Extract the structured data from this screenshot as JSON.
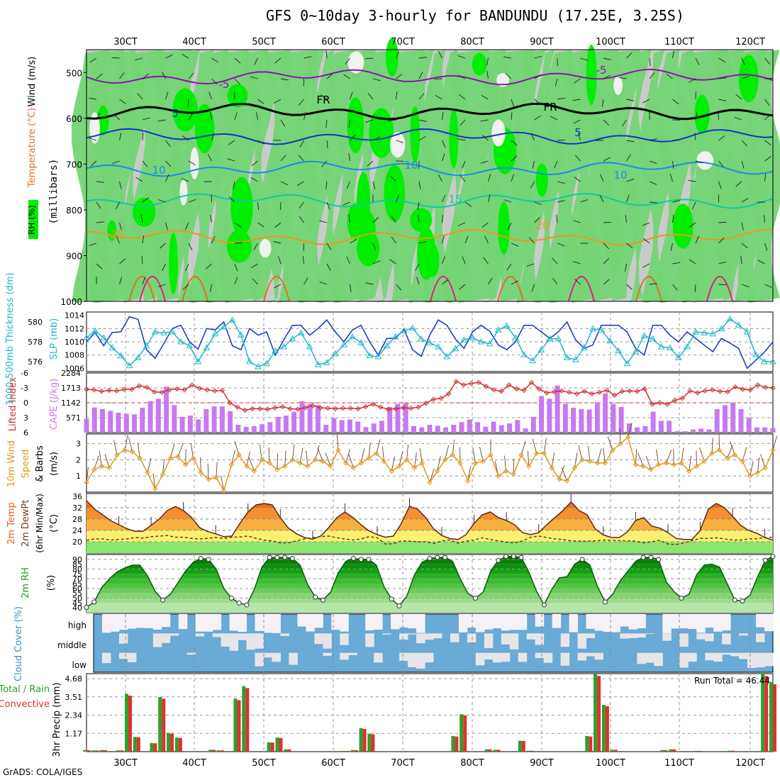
{
  "header": {
    "title": "GFS 0~10day 3-hourly for BANDUNDU (17.25E, 3.25S)",
    "credit": "GrADS: COLA/IGES"
  },
  "dates": [
    "30CT",
    "40CT",
    "50CT",
    "60CT",
    "70CT",
    "80CT",
    "90CT",
    "100CT",
    "110CT",
    "120CT"
  ],
  "colors": {
    "rh_light": "#c8ccc8",
    "rh_mid": "#74d474",
    "rh_high": "#00ee00",
    "slp": "#1434c8",
    "thickness": "#1cb8c8",
    "lifted": "#d03030",
    "cape": "#c878f0",
    "wind10": "#e09a20",
    "temp_hot": "#f06e10",
    "temp_warm": "#f8b040",
    "temp_mild": "#fcf070",
    "cloud": "#6aaad6"
  },
  "chart_data": [
    {
      "type": "area",
      "panel": "pressure-cross-section",
      "ylabel": "(millibars)",
      "side_labels": {
        "wind": "Wind (m/s)",
        "temperature": "Temperature (°C)",
        "rh": "RH (%)"
      },
      "y_ticks": [
        500,
        600,
        700,
        800,
        900,
        1000
      ],
      "ylim": [
        450,
        1000
      ],
      "temperature_contours": [
        {
          "label": "-5",
          "level_mb": 510,
          "color": "#8c14b4"
        },
        {
          "label": "FR",
          "level_mb": 585,
          "color": "#000000"
        },
        {
          "label": "5",
          "level_mb": 640,
          "color": "#1434c8"
        },
        {
          "label": "10",
          "level_mb": 710,
          "color": "#1c8ce8"
        },
        {
          "label": "15",
          "level_mb": 780,
          "color": "#14c8a0"
        },
        {
          "label": "20",
          "level_mb": 860,
          "color": "#e89820"
        }
      ],
      "contour_texts": [
        "-5",
        "-5",
        "FR",
        "FR",
        "5",
        "5",
        "10",
        "10",
        "10",
        "15",
        "20",
        "20"
      ]
    },
    {
      "type": "line",
      "panel": "slp-thickness",
      "ylabel_left": "1000-500mb Thickness (dm)",
      "ylabel_right": "SLP (mb)",
      "left_ticks": [
        576,
        578,
        580
      ],
      "right_ticks": [
        1006,
        1008,
        1010,
        1012,
        1014
      ],
      "series": [
        {
          "name": "SLP (mb)",
          "values": [
            1010.0,
            1011.4,
            1009.4,
            1011.4,
            1011.5,
            1013.8,
            1013.4,
            1008.8,
            1007.5,
            1009.7,
            1012.0,
            1012.5,
            1010.0,
            1008.9,
            1012.0,
            1011.8,
            1013.0,
            1009.4,
            1008.8,
            1012.0,
            1011.0,
            1011.5,
            1008.0,
            1010.3,
            1012.5,
            1012.5,
            1011.0,
            1012.0,
            1013.3,
            1011.5,
            1010.0,
            1011.8,
            1012.5,
            1010.0,
            1008.0,
            1010.5,
            1010.5,
            1011.9,
            1008.8,
            1007.8,
            1011.0,
            1013.3,
            1012.5,
            1010.4,
            1009.0,
            1011.5,
            1012.5,
            1011.6,
            1009.5,
            1008.8,
            1010.0,
            1012.5,
            1012.5,
            1011.5,
            1010.5,
            1011.5,
            1013.0,
            1010.3,
            1009.0,
            1009.5,
            1012.5,
            1012.5,
            1012.5,
            1011.5,
            1009.0,
            1008.0,
            1012.5,
            1012.5,
            1011.0,
            1010.0,
            1011.5,
            1010.5,
            1009.5,
            1008.5,
            1010.5,
            1009.8,
            1009.0,
            1006.0,
            1007.2,
            1008.4,
            1010.0
          ]
        },
        {
          "name": "1000-500mb Thickness (dm)",
          "values": [
            578.4,
            579.1,
            578.4,
            577.4,
            576.6,
            575.6,
            576.4,
            577.6,
            579.0,
            578.9,
            579.0,
            578.0,
            577.6,
            576.0,
            577.4,
            578.8,
            579.5,
            580.2,
            578.7,
            576.0,
            575.5,
            575.8,
            577.1,
            577.5,
            578.3,
            578.9,
            577.5,
            575.7,
            575.9,
            576.8,
            577.7,
            578.5,
            577.9,
            576.6,
            576.5,
            577.6,
            578.5,
            579.1,
            579.4,
            578.3,
            577.9,
            577.5,
            576.5,
            577.3,
            578.2,
            578.4,
            578.0,
            577.8,
            579.2,
            579.6,
            578.4,
            576.7,
            576.1,
            577.2,
            578.3,
            578.3,
            576.4,
            576.2,
            577.4,
            579.3,
            579.2,
            578.1,
            577.1,
            575.8,
            577.0,
            578.6,
            578.3,
            577.5,
            577.4,
            576.4,
            577.5,
            579.0,
            578.9,
            578.8,
            579.3,
            580.3,
            579.7,
            579.0,
            576.7,
            576.0,
            576.0
          ]
        }
      ]
    },
    {
      "type": "bar",
      "panel": "lifted-cape",
      "ylabel_left": "Lifted Index",
      "ylabel_right": "CAPE (J/kg)",
      "left_ticks": [
        "6",
        "3",
        "0",
        "-3",
        "-6"
      ],
      "right_ticks": [
        "571",
        "1142",
        "1713",
        "2284"
      ],
      "series": [
        {
          "name": "CAPE (J/kg)",
          "values": [
            520,
            960,
            900,
            830,
            760,
            720,
            700,
            950,
            1200,
            1300,
            1760,
            1050,
            600,
            650,
            500,
            900,
            1000,
            1000,
            820,
            300,
            220,
            250,
            320,
            400,
            600,
            650,
            800,
            1200,
            1100,
            1050,
            300,
            560,
            480,
            500,
            420,
            210,
            350,
            450,
            980,
            1100,
            1120,
            250,
            200,
            300,
            260,
            200,
            300,
            400,
            500,
            400,
            220,
            420,
            280,
            350,
            480,
            160,
            600,
            1400,
            1300,
            1800,
            1100,
            950,
            900,
            880,
            1160,
            1500,
            1100,
            980,
            350,
            200,
            250,
            800,
            450,
            450,
            50,
            50,
            120,
            150,
            120,
            900,
            1050,
            1150,
            900,
            570,
            200,
            200,
            170
          ]
        },
        {
          "name": "Lifted Index",
          "values": [
            -2.7,
            -2.6,
            -2.3,
            -2.5,
            -2.4,
            -2.7,
            -2.7,
            -3.4,
            -3.1,
            -2.2,
            -2.1,
            -2.6,
            -2.8,
            -2.6,
            -3.6,
            -2.9,
            -2.6,
            -2.4,
            -2.5,
            0,
            0.9,
            1.5,
            1.2,
            1.2,
            1.3,
            1.0,
            0.8,
            1.2,
            1.3,
            1.0,
            0.6,
            1.0,
            1.1,
            1.2,
            1.1,
            1.1,
            1.2,
            0.8,
            0.3,
            0.9,
            1.3,
            1.2,
            1.0,
            1.1,
            0.9,
            0.1,
            -0.7,
            -0.9,
            -1.8,
            -4.3,
            -3.6,
            -3.9,
            -4.1,
            -3.3,
            -2.6,
            -2.3,
            -3.6,
            -2.8,
            -2.5,
            -4.1,
            -2.8,
            -2.0,
            -2.2,
            -2.4,
            -2.1,
            -1.8,
            -2.3,
            -1.8,
            -2.1,
            -2.5,
            -1.5,
            -2.3,
            -2.4,
            -2.3,
            -2.8,
            0.3,
            0.0,
            0.3,
            -0.5,
            -0.9,
            -2.4,
            -2.0,
            -2.4,
            -2.6,
            -2.3,
            -2.2,
            -3.2,
            -2.7,
            -2.6,
            -3.6,
            -3.1,
            -3.0
          ]
        }
      ]
    },
    {
      "type": "line",
      "panel": "wind10m",
      "ylabel": "10m Wind Speed & Barbs (m/s)",
      "y_ticks": [
        "1",
        "2",
        "3"
      ],
      "ylim": [
        0,
        3.6
      ],
      "series": [
        {
          "name": "10m wind speed (m/s)",
          "values": [
            0.6,
            1.4,
            1.6,
            1.5,
            2.3,
            2.6,
            2.5,
            2.1,
            1.2,
            0.2,
            1.1,
            2.1,
            2.2,
            1.7,
            2.1,
            1.2,
            0.8,
            0.9,
            0.1,
            1.7,
            2.3,
            1.6,
            1.3,
            2.0,
            1.8,
            1.4,
            1.6,
            2.0,
            1.8,
            1.6,
            2.0,
            1.9,
            1.6,
            2.6,
            1.8,
            1.5,
            1.8,
            2.1,
            2.4,
            1.9,
            1.3,
            1.6,
            2.0,
            1.5,
            1.8,
            0.6,
            1.3,
            2.0,
            2.3,
            1.8,
            0.7,
            1.8,
            1.9,
            2.3,
            1.0,
            1.3,
            1.1,
            2.3,
            1.6,
            2.4,
            2.4,
            1.5,
            0.8,
            0.7,
            1.5,
            2.0,
            1.9,
            1.8,
            1.8,
            2.6,
            3.0,
            3.4,
            1.7,
            1.6,
            1.4,
            1.7,
            1.8,
            1.7,
            1.8,
            1.3,
            1.6,
            1.9,
            2.4,
            2.6,
            2.1,
            2.3,
            1.9,
            1.0,
            1.2,
            1.5,
            2.6
          ]
        }
      ]
    },
    {
      "type": "area",
      "panel": "temperature",
      "ylabel": "2m Temp 2m DewPt (6hr Min/Max) (°C)",
      "y_ticks": [
        "20",
        "24",
        "28",
        "32",
        "36"
      ],
      "ylim": [
        16,
        37
      ],
      "series": [
        {
          "name": "2m Temp (°C)",
          "values": [
            34.5,
            31.5,
            29.5,
            27.4,
            26.0,
            24.6,
            23.7,
            23.7,
            25.8,
            28.0,
            31.0,
            32.4,
            31.0,
            28.6,
            25.0,
            23.6,
            22.8,
            21.8,
            22.0,
            26.5,
            30.5,
            33.0,
            33.5,
            33.0,
            28.5,
            24.8,
            22.8,
            21.5,
            20.9,
            22.0,
            25.0,
            28.5,
            30.5,
            28.5,
            26.0,
            23.8,
            22.5,
            21.6,
            22.0,
            26.5,
            32.5,
            31.5,
            28.5,
            24.5,
            22.2,
            21.1,
            20.8,
            22.5,
            26.5,
            29.5,
            30.5,
            28.5,
            27.5,
            26.0,
            23.2,
            22.5,
            23.2,
            26.0,
            28.5,
            31.0,
            34.0,
            31.0,
            29.5,
            24.5,
            22.4,
            21.5,
            21.5,
            23.5,
            27.5,
            28.5,
            25.5,
            24.8,
            23.2,
            21.2,
            20.8,
            20.8,
            24.0,
            31.5,
            33.5,
            32.0,
            29.0,
            25.8,
            24.0,
            23.0,
            21.5,
            20.5
          ]
        },
        {
          "name": "2m DewPt (°C)",
          "values": [
            20.5,
            21.0,
            21.0,
            20.6,
            20.8,
            21.0,
            21.5,
            21.3,
            21.8,
            22.0,
            22.2,
            21.6,
            21.6,
            21.2,
            21.0,
            21.2,
            21.5,
            21.2,
            21.6,
            21.7,
            22.0,
            21.2,
            20.6,
            20.3,
            19.6,
            19.6,
            20.3,
            21.0,
            21.5,
            21.8,
            22.0,
            21.4,
            21.0,
            20.6,
            21.0,
            21.8,
            21.4,
            19.2,
            19.3,
            20.3,
            20.2,
            20.0,
            20.0,
            19.4,
            20.3,
            20.6,
            19.5,
            20.2,
            20.6,
            21.4,
            20.8,
            20.3,
            19.8,
            19.6,
            20.3,
            21.6,
            22.0,
            21.5,
            21.0,
            20.8,
            20.3,
            20.2,
            20.2,
            20.3,
            20.6,
            20.5,
            20.4,
            20.3,
            20.2,
            19.6,
            20.0,
            20.5,
            19.2,
            19.0,
            19.6,
            20.4,
            21.2,
            21.2,
            21.4,
            21.0,
            20.6,
            20.6,
            21.0,
            21.1,
            21.4,
            21.6
          ]
        }
      ]
    },
    {
      "type": "area",
      "panel": "rh2m",
      "ylabel": "2m RH (%)",
      "y_ticks": [
        "40",
        "45",
        "50",
        "55",
        "60",
        "65",
        "70",
        "75",
        "80",
        "85",
        "90"
      ],
      "ylim": [
        35,
        95
      ],
      "series": [
        {
          "name": "2m RH (%)",
          "values": [
            40.5,
            46,
            61,
            70,
            77,
            81,
            84,
            84,
            73,
            57,
            48,
            54,
            66,
            78,
            87,
            91,
            90,
            80,
            60,
            50,
            45,
            43,
            59,
            82,
            92,
            92,
            92,
            91,
            84,
            64,
            51,
            48,
            56,
            76,
            88,
            91,
            90,
            90,
            84,
            62,
            49,
            42,
            52,
            74,
            87,
            91,
            92,
            92,
            88,
            70,
            55,
            50,
            56,
            78,
            89,
            93,
            93,
            92,
            77,
            57,
            43,
            59,
            71,
            72,
            85,
            90,
            84,
            62,
            46,
            54,
            68,
            78,
            88,
            92,
            92,
            90,
            67,
            57,
            50,
            54,
            74,
            84,
            85,
            82,
            65,
            48,
            47,
            53,
            72,
            89,
            93
          ]
        }
      ]
    },
    {
      "type": "bar",
      "panel": "cloud-cover",
      "ylabel": "Cloud Cover (%)",
      "categories": [
        "high",
        "middle",
        "low"
      ]
    },
    {
      "type": "bar",
      "panel": "precip",
      "ylabel": "3hr Precip (mm)",
      "legend": [
        "Total / Rain",
        "Convective"
      ],
      "y_ticks": [
        "1.17",
        "2.34",
        "3.51",
        "4.68"
      ],
      "ylim": [
        0,
        5.0
      ],
      "run_total_label": "Run Total  =  46.44",
      "series": [
        {
          "name": "Total precip (mm)",
          "values": [
            0.1,
            0.08,
            0.1,
            0,
            0.08,
            3.7,
            0.95,
            0,
            0.55,
            3.5,
            1.2,
            0.9,
            0,
            0,
            0,
            0.12,
            0.08,
            0,
            3.4,
            4.2,
            0,
            0,
            0.6,
            0.9,
            0.15,
            0,
            0,
            0,
            0,
            0,
            0,
            0.05,
            0.1,
            1.5,
            1.15,
            0,
            0,
            0,
            0,
            0,
            0,
            0,
            0,
            0,
            1.0,
            2.4,
            0,
            0,
            0.15,
            0.12,
            0,
            0,
            0.7,
            0.06,
            0,
            0,
            0,
            0,
            0,
            0,
            1.0,
            5.0,
            3.0,
            0.12,
            0,
            0,
            0,
            0,
            0,
            0.1,
            0.15,
            0,
            0,
            0.05,
            0,
            0,
            0,
            0.06,
            0,
            0,
            0,
            5.0,
            4.45
          ]
        }
      ]
    }
  ]
}
